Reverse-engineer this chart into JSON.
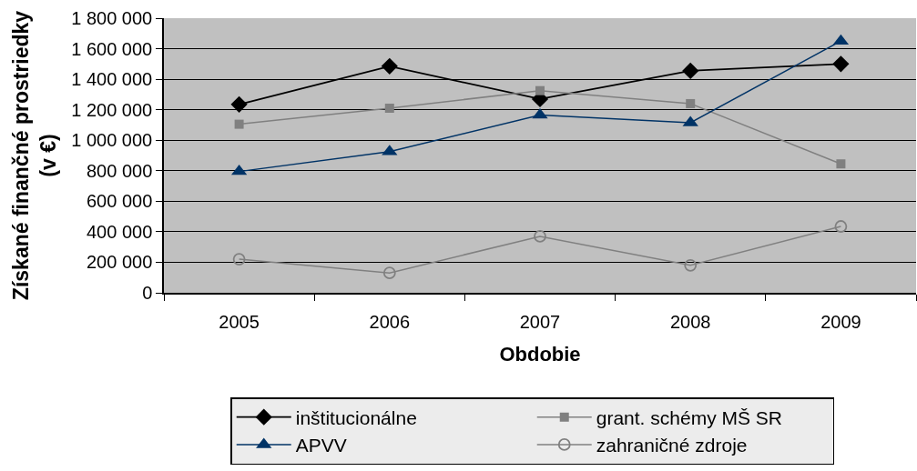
{
  "chart_data": {
    "type": "line",
    "xlabel": "Obdobie",
    "ylabel": "Získané finančné prostriedky\n(v €)",
    "categories": [
      "2005",
      "2006",
      "2007",
      "2008",
      "2009"
    ],
    "series": [
      {
        "name": "inštitucionálne",
        "color": "#000000",
        "marker": "diamond",
        "values": [
          1235000,
          1485000,
          1270000,
          1455000,
          1500000
        ]
      },
      {
        "name": "grant. schémy MŠ SR",
        "color": "#808080",
        "marker": "square",
        "values": [
          1105000,
          1210000,
          1325000,
          1240000,
          845000
        ]
      },
      {
        "name": "APVV",
        "color": "#003366",
        "marker": "triangle",
        "values": [
          795000,
          925000,
          1165000,
          1115000,
          1650000
        ]
      },
      {
        "name": "zahraničné zdroje",
        "color": "#808080",
        "marker": "circle",
        "values": [
          220000,
          130000,
          370000,
          180000,
          435000
        ]
      }
    ],
    "ylim": [
      0,
      1800000
    ],
    "yticks": [
      0,
      {
        "value": 200000,
        "label": "200 000"
      },
      {
        "value": 400000,
        "label": "400 000"
      },
      {
        "value": 600000,
        "label": "600 000"
      },
      {
        "value": 800000,
        "label": "800 000"
      },
      {
        "value": 1000000,
        "label": "1 000 000"
      },
      {
        "value": 1200000,
        "label": "1 200 000"
      },
      {
        "value": 1400000,
        "label": "1 400 000"
      },
      {
        "value": 1600000,
        "label": "1 600 000"
      },
      {
        "value": 1800000,
        "label": "1 800 000"
      }
    ],
    "grid": "y",
    "legend": "bottom",
    "line_style": "solid"
  }
}
